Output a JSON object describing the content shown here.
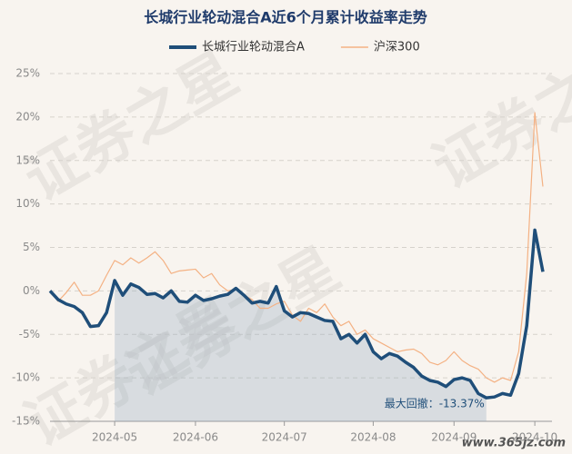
{
  "chart_data": {
    "type": "line",
    "title": "长城行业轮动混合A近6个月累计收益率走势",
    "categories": [
      null,
      null,
      null,
      null,
      null,
      null,
      null,
      null,
      "2024-05",
      null,
      null,
      null,
      null,
      null,
      null,
      null,
      null,
      null,
      "2024-06",
      null,
      null,
      null,
      null,
      null,
      null,
      null,
      null,
      null,
      null,
      "2024-07",
      null,
      null,
      null,
      null,
      null,
      null,
      null,
      null,
      null,
      null,
      "2024-08",
      null,
      null,
      null,
      null,
      null,
      null,
      null,
      null,
      null,
      "2024-09",
      null,
      null,
      null,
      null,
      null,
      null,
      null,
      null,
      null,
      "2024-10",
      null
    ],
    "series": [
      {
        "name": "长城行业轮动混合A",
        "color": "#1f4e79",
        "values": [
          0,
          -1,
          -1.5,
          -1.8,
          -2.5,
          -4.1,
          -4,
          -2.5,
          1.2,
          -0.5,
          0.8,
          0.4,
          -0.4,
          -0.3,
          -0.8,
          0,
          -1.2,
          -1.3,
          -0.5,
          -1.1,
          -0.9,
          -0.6,
          -0.4,
          0.3,
          -0.5,
          -1.4,
          -1.2,
          -1.4,
          0.5,
          -2.3,
          -3,
          -2.5,
          -2.6,
          -3,
          -3.4,
          -3.5,
          -5.5,
          -5,
          -6,
          -5,
          -7,
          -7.8,
          -7.2,
          -7.5,
          -8.2,
          -8.8,
          -9.8,
          -10.3,
          -10.5,
          -11,
          -10.2,
          -10,
          -10.3,
          -11.8,
          -12.3,
          -12.2,
          -11.8,
          -12,
          -9.5,
          -4,
          7,
          2.2
        ]
      },
      {
        "name": "沪深300",
        "color": "#f4b183",
        "values": [
          0,
          -1.2,
          -0.2,
          1,
          -0.5,
          -0.5,
          0,
          1.8,
          3.5,
          3,
          3.8,
          3.2,
          3.8,
          4.5,
          3.5,
          2,
          2.3,
          2.4,
          2.5,
          1.5,
          2,
          0.7,
          0,
          0.2,
          -0.5,
          -1,
          -2,
          -2,
          -1.5,
          -1.2,
          -2.8,
          -3.5,
          -2,
          -2.5,
          -1.5,
          -3,
          -4,
          -3.5,
          -5,
          -4.5,
          -5.5,
          -6,
          -6.5,
          -7,
          -6.8,
          -6.7,
          -7.2,
          -8.2,
          -8.5,
          -8,
          -7,
          -8,
          -8.6,
          -9,
          -10,
          -10.5,
          -10,
          -10.3,
          -7,
          2,
          20.5,
          12
        ]
      }
    ],
    "ylim": [
      -15,
      25
    ],
    "yticks": [
      {
        "value": -15,
        "label": "-15%"
      },
      {
        "value": -10,
        "label": "-10%"
      },
      {
        "value": -5,
        "label": "-5%"
      },
      {
        "value": 0,
        "label": "0%"
      },
      {
        "value": 5,
        "label": "5%"
      },
      {
        "value": 10,
        "label": "10%"
      },
      {
        "value": 15,
        "label": "15%"
      },
      {
        "value": 20,
        "label": "20%"
      },
      {
        "value": 25,
        "label": "25%"
      }
    ],
    "grid": true,
    "legend": "top",
    "annotation": "最大回撤：-13.37%",
    "watermark": "证券之星",
    "site": "www.365jz.com"
  }
}
